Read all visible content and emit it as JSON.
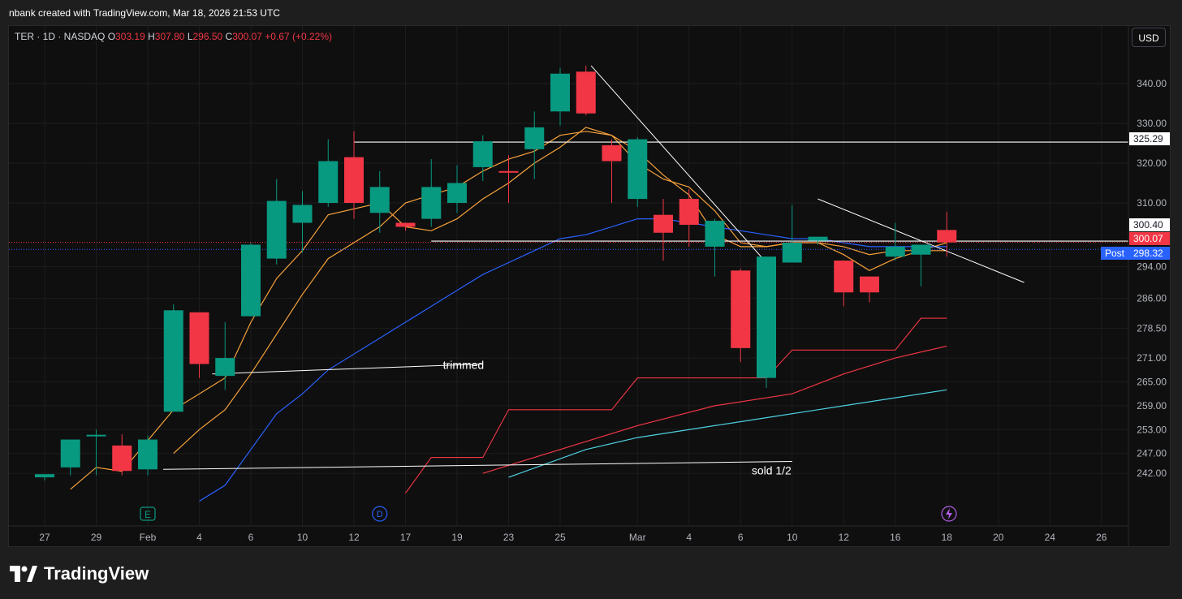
{
  "header": {
    "credit": "nbank created with TradingView.com, Mar 18, 2026 21:53 UTC"
  },
  "legend": {
    "symbol": "TER · 1D · NASDAQ",
    "open_label": "O",
    "open": "303.19",
    "high_label": "H",
    "high": "307.80",
    "low_label": "L",
    "low": "296.50",
    "close_label": "C",
    "close": "300.07",
    "change": "+0.67 (+0.22%)"
  },
  "currency_button": "USD",
  "price_tags": {
    "resistance": "325.29",
    "level": "300.40",
    "last": "300.07",
    "post_label": "Post",
    "post": "298.32"
  },
  "footer": {
    "brand": "TradingView"
  },
  "colors": {
    "up": "#089981",
    "down": "#f23645",
    "background": "#0f0f0f",
    "ema_fast": "#f7a23b",
    "ma_blue": "#2962ff",
    "ma_red": "#f23645",
    "ma_cyan": "#4dd0e1",
    "post": "#2962ff"
  },
  "chart_data": {
    "type": "candlestick",
    "symbol": "TER",
    "interval": "1D",
    "exchange": "NASDAQ",
    "ylim": [
      237,
      350
    ],
    "y_ticks": [
      242.0,
      247.0,
      253.0,
      259.0,
      265.0,
      271.0,
      278.5,
      286.0,
      294.0,
      310.0,
      320.0,
      330.0,
      340.0
    ],
    "y_tick_labels": [
      "242.00",
      "247.00",
      "253.00",
      "259.00",
      "265.00",
      "271.00",
      "278.50",
      "286.00",
      "294.00",
      "310.00",
      "320.00",
      "330.00",
      "340.00"
    ],
    "x_tick_labels": [
      "27",
      "29",
      "Feb",
      "4",
      "6",
      "10",
      "12",
      "17",
      "19",
      "23",
      "25",
      "Mar",
      "4",
      "6",
      "10",
      "12",
      "16",
      "18",
      "20",
      "24",
      "26"
    ],
    "candles": [
      {
        "o": 241,
        "h": 241.5,
        "l": 240.2,
        "c": 241.8
      },
      {
        "o": 243.5,
        "h": 250.5,
        "l": 241.5,
        "c": 250.5
      },
      {
        "o": 251.4,
        "h": 253,
        "l": 241.5,
        "c": 251.7
      },
      {
        "o": 249,
        "h": 251.8,
        "l": 241.5,
        "c": 242.6
      },
      {
        "o": 243,
        "h": 251.5,
        "l": 241.5,
        "c": 250.5
      },
      {
        "o": 257.5,
        "h": 284.5,
        "l": 257.5,
        "c": 283
      },
      {
        "o": 282.5,
        "h": 282.5,
        "l": 266,
        "c": 269.5
      },
      {
        "o": 266.5,
        "h": 280,
        "l": 263,
        "c": 271
      },
      {
        "o": 281.5,
        "h": 300,
        "l": 281.5,
        "c": 299.5
      },
      {
        "o": 296,
        "h": 316,
        "l": 294.5,
        "c": 310.5
      },
      {
        "o": 305,
        "h": 313,
        "l": 297.5,
        "c": 309.5
      },
      {
        "o": 310,
        "h": 326,
        "l": 309,
        "c": 320.5
      },
      {
        "o": 321.5,
        "h": 328,
        "l": 306,
        "c": 310
      },
      {
        "o": 307.5,
        "h": 318,
        "l": 302.5,
        "c": 314
      },
      {
        "o": 305,
        "h": 305,
        "l": 303,
        "c": 304
      },
      {
        "o": 306,
        "h": 321,
        "l": 304,
        "c": 314
      },
      {
        "o": 310,
        "h": 319.5,
        "l": 307.5,
        "c": 315
      },
      {
        "o": 319,
        "h": 327,
        "l": 315.5,
        "c": 325.5
      },
      {
        "o": 318,
        "h": 322,
        "l": 310,
        "c": 317.8
      },
      {
        "o": 323.5,
        "h": 333,
        "l": 316,
        "c": 329
      },
      {
        "o": 333,
        "h": 344,
        "l": 329.5,
        "c": 342.5
      },
      {
        "o": 343,
        "h": 344.5,
        "l": 332,
        "c": 332.5
      },
      {
        "o": 324.5,
        "h": 326,
        "l": 310,
        "c": 320.5
      },
      {
        "o": 311,
        "h": 326.5,
        "l": 309,
        "c": 326
      },
      {
        "o": 307,
        "h": 311,
        "l": 295.5,
        "c": 302.5
      },
      {
        "o": 311,
        "h": 313.5,
        "l": 299,
        "c": 304.5
      },
      {
        "o": 299,
        "h": 306,
        "l": 291.5,
        "c": 305.5
      },
      {
        "o": 293,
        "h": 293.5,
        "l": 270,
        "c": 273.5
      },
      {
        "o": 266,
        "h": 296.5,
        "l": 263.5,
        "c": 296.5
      },
      {
        "o": 295,
        "h": 309.5,
        "l": 295,
        "c": 300
      },
      {
        "o": 300.5,
        "h": 301,
        "l": 299.5,
        "c": 301.5
      },
      {
        "o": 295.5,
        "h": 295.5,
        "l": 284,
        "c": 287.5
      },
      {
        "o": 291.5,
        "h": 291.5,
        "l": 285,
        "c": 287.5
      },
      {
        "o": 296.5,
        "h": 305,
        "l": 295.5,
        "c": 299
      },
      {
        "o": 297,
        "h": 299,
        "l": 289,
        "c": 299.5
      },
      {
        "o": 303.19,
        "h": 307.8,
        "l": 296.5,
        "c": 300.07
      }
    ],
    "annotations": [
      "trimmed",
      "sold 1/2"
    ],
    "event_markers": [
      "E",
      "D"
    ]
  }
}
